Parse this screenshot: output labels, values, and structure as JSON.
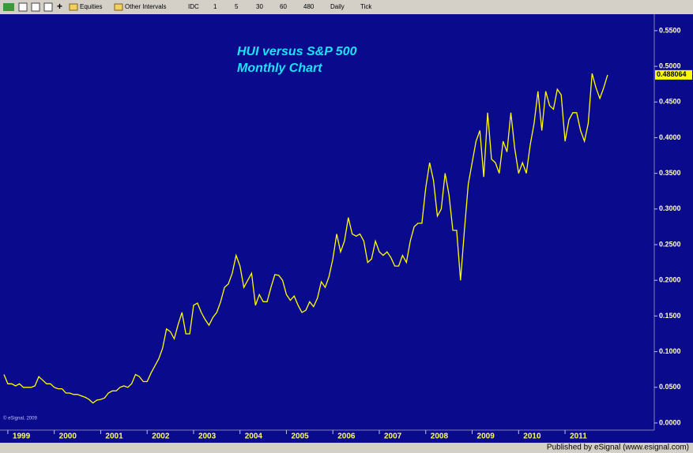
{
  "toolbar": {
    "items": [
      "Equities",
      "Other Intervals",
      "IDC",
      "1",
      "5",
      "30",
      "60",
      "480",
      "Daily",
      "Tick"
    ]
  },
  "chart_data": {
    "type": "line",
    "title": "HUI versus S&P 500",
    "subtitle": "Monthly Chart",
    "watermark": "© eSignal, 2009",
    "footer": "Published by eSignal (www.esignal.com)",
    "color": "#ffff00",
    "categories": [
      null,
      "1999",
      null,
      null,
      null,
      null,
      null,
      null,
      null,
      null,
      null,
      null,
      null,
      "2000",
      null,
      null,
      null,
      null,
      null,
      null,
      null,
      null,
      null,
      null,
      null,
      "2001",
      null,
      null,
      null,
      null,
      null,
      null,
      null,
      null,
      null,
      null,
      null,
      "2002",
      null,
      null,
      null,
      null,
      null,
      null,
      null,
      null,
      null,
      null,
      null,
      "2003",
      null,
      null,
      null,
      null,
      null,
      null,
      null,
      null,
      null,
      null,
      null,
      "2004",
      null,
      null,
      null,
      null,
      null,
      null,
      null,
      null,
      null,
      null,
      null,
      "2005",
      null,
      null,
      null,
      null,
      null,
      null,
      null,
      null,
      null,
      null,
      null,
      "2006",
      null,
      null,
      null,
      null,
      null,
      null,
      null,
      null,
      null,
      null,
      null,
      "2007",
      null,
      null,
      null,
      null,
      null,
      null,
      null,
      null,
      null,
      null,
      null,
      "2008",
      null,
      null,
      null,
      null,
      null,
      null,
      null,
      null,
      null,
      null,
      null,
      "2009",
      null,
      null,
      null,
      null,
      null,
      null,
      null,
      null,
      null,
      null,
      null,
      "2010",
      null,
      null,
      null,
      null,
      null,
      null,
      null,
      null,
      null,
      null,
      null,
      "2011",
      null,
      null,
      null,
      null,
      null,
      null,
      null,
      null,
      null,
      null,
      null
    ],
    "values": [
      0.068,
      0.055,
      0.055,
      0.052,
      0.055,
      0.05,
      0.05,
      0.05,
      0.052,
      0.065,
      0.06,
      0.055,
      0.055,
      0.05,
      0.048,
      0.048,
      0.042,
      0.042,
      0.04,
      0.04,
      0.038,
      0.036,
      0.033,
      0.028,
      0.032,
      0.033,
      0.035,
      0.042,
      0.045,
      0.045,
      0.05,
      0.052,
      0.05,
      0.055,
      0.068,
      0.065,
      0.058,
      0.058,
      0.07,
      0.08,
      0.09,
      0.105,
      0.132,
      0.128,
      0.118,
      0.138,
      0.155,
      0.125,
      0.125,
      0.165,
      0.168,
      0.155,
      0.145,
      0.137,
      0.148,
      0.155,
      0.17,
      0.19,
      0.195,
      0.21,
      0.235,
      0.22,
      0.19,
      0.2,
      0.21,
      0.165,
      0.18,
      0.17,
      0.17,
      0.19,
      0.208,
      0.207,
      0.2,
      0.18,
      0.172,
      0.178,
      0.165,
      0.155,
      0.158,
      0.17,
      0.163,
      0.175,
      0.198,
      0.19,
      0.205,
      0.23,
      0.265,
      0.24,
      0.255,
      0.288,
      0.265,
      0.262,
      0.265,
      0.255,
      0.225,
      0.23,
      0.255,
      0.24,
      0.235,
      0.24,
      0.232,
      0.22,
      0.22,
      0.235,
      0.225,
      0.255,
      0.275,
      0.28,
      0.28,
      0.33,
      0.365,
      0.34,
      0.29,
      0.3,
      0.35,
      0.32,
      0.27,
      0.27,
      0.2,
      0.27,
      0.335,
      0.365,
      0.395,
      0.41,
      0.345,
      0.435,
      0.37,
      0.365,
      0.35,
      0.395,
      0.38,
      0.435,
      0.385,
      0.35,
      0.365,
      0.35,
      0.39,
      0.42,
      0.465,
      0.41,
      0.465,
      0.445,
      0.44,
      0.468,
      0.46,
      0.395,
      0.425,
      0.435,
      0.435,
      0.41,
      0.395,
      0.42,
      0.49,
      0.47,
      0.455,
      0.47,
      0.488064
    ],
    "ylim": [
      -0.01,
      0.572
    ],
    "yticks": [
      {
        "value": 0,
        "label": "0.0000"
      },
      {
        "value": 0.05,
        "label": "0.0500"
      },
      {
        "value": 0.1,
        "label": "0.1000"
      },
      {
        "value": 0.15,
        "label": "0.1500"
      },
      {
        "value": 0.2,
        "label": "0.2000"
      },
      {
        "value": 0.25,
        "label": "0.2500"
      },
      {
        "value": 0.3,
        "label": "0.3000"
      },
      {
        "value": 0.35,
        "label": "0.3500"
      },
      {
        "value": 0.4,
        "label": "0.4000"
      },
      {
        "value": 0.45,
        "label": "0.4500"
      },
      {
        "value": 0.5,
        "label": "0.5000"
      },
      {
        "value": 0.55,
        "label": "0.5500"
      }
    ],
    "grid": false
  }
}
